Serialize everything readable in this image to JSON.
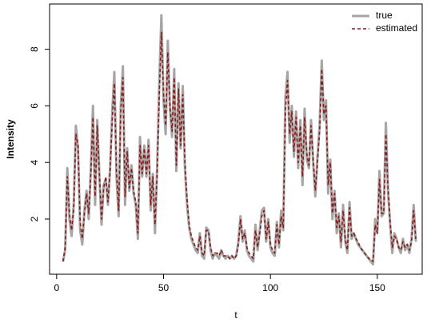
{
  "chart_data": {
    "type": "line",
    "x_label": "t",
    "y_label": "Intensity",
    "x": [
      3,
      4,
      5,
      6,
      7,
      8,
      9,
      10,
      11,
      12,
      13,
      14,
      15,
      16,
      17,
      18,
      19,
      20,
      21,
      22,
      23,
      24,
      25,
      26,
      27,
      28,
      29,
      30,
      31,
      32,
      33,
      34,
      35,
      36,
      37,
      38,
      39,
      40,
      41,
      42,
      43,
      44,
      45,
      46,
      47,
      48,
      49,
      50,
      51,
      52,
      53,
      54,
      55,
      56,
      57,
      58,
      59,
      60,
      61,
      62,
      63,
      64,
      65,
      66,
      67,
      68,
      69,
      70,
      71,
      72,
      73,
      74,
      75,
      76,
      77,
      78,
      79,
      80,
      81,
      82,
      83,
      84,
      85,
      86,
      87,
      88,
      89,
      90,
      91,
      92,
      93,
      94,
      95,
      96,
      97,
      98,
      99,
      100,
      101,
      102,
      103,
      104,
      105,
      106,
      107,
      108,
      109,
      110,
      111,
      112,
      113,
      114,
      115,
      116,
      117,
      118,
      119,
      120,
      121,
      122,
      123,
      124,
      125,
      126,
      127,
      128,
      129,
      130,
      131,
      132,
      133,
      134,
      135,
      136,
      137,
      138,
      139,
      140,
      141,
      142,
      143,
      144,
      145,
      146,
      147,
      148,
      149,
      150,
      151,
      152,
      153,
      154,
      155,
      156,
      157,
      158,
      159,
      160,
      161,
      162,
      163,
      164,
      165,
      166,
      167,
      168
    ],
    "series": [
      {
        "name": "true",
        "color": "#a6a6a6",
        "dash": false,
        "values": [
          0.5,
          0.9,
          3.8,
          2.0,
          1.4,
          2.5,
          5.3,
          4.5,
          1.6,
          1.1,
          2.3,
          3.0,
          2.0,
          3.8,
          6.0,
          2.5,
          5.5,
          3.5,
          1.8,
          3.2,
          3.4,
          2.5,
          3.8,
          5.8,
          7.2,
          3.5,
          2.1,
          6.0,
          7.4,
          2.5,
          4.5,
          3.0,
          3.9,
          2.9,
          2.5,
          1.3,
          4.9,
          3.5,
          4.6,
          3.5,
          4.8,
          2.3,
          3.6,
          1.5,
          3.8,
          6.8,
          9.2,
          6.2,
          5.0,
          8.3,
          5.9,
          4.9,
          7.3,
          3.7,
          6.8,
          4.5,
          6.7,
          3.8,
          2.5,
          1.7,
          1.3,
          1.1,
          0.9,
          0.8,
          1.5,
          0.7,
          0.6,
          1.7,
          1.6,
          0.9,
          0.6,
          0.8,
          0.7,
          0.6,
          0.9,
          0.7,
          0.6,
          0.7,
          0.6,
          0.7,
          0.6,
          0.7,
          1.2,
          2.1,
          1.2,
          1.6,
          0.9,
          0.7,
          0.6,
          0.5,
          1.8,
          0.9,
          1.6,
          2.3,
          2.4,
          1.2,
          2.0,
          1.0,
          0.8,
          0.7,
          1.9,
          1.0,
          2.3,
          1.6,
          6.3,
          7.2,
          4.7,
          6.0,
          4.2,
          5.8,
          3.8,
          5.5,
          3.2,
          5.9,
          4.1,
          3.8,
          5.5,
          4.0,
          2.8,
          4.2,
          5.3,
          7.6,
          5.5,
          6.2,
          2.9,
          4.1,
          2.0,
          3.0,
          1.5,
          2.2,
          1.0,
          2.5,
          1.2,
          0.8,
          2.6,
          1.3,
          1.5,
          1.3,
          1.1,
          1.0,
          0.9,
          0.8,
          0.7,
          0.6,
          0.5,
          0.4,
          2.0,
          1.5,
          3.7,
          2.1,
          2.2,
          5.4,
          3.0,
          1.8,
          0.8,
          1.5,
          1.3,
          1.0,
          0.8,
          1.3,
          0.9,
          1.1,
          0.8,
          1.3,
          2.5,
          1.2
        ]
      },
      {
        "name": "estimated",
        "color": "#8b1a1a",
        "dash": true,
        "values": [
          0.5,
          1.0,
          3.5,
          2.2,
          1.6,
          2.4,
          5.0,
          4.6,
          1.9,
          1.3,
          2.2,
          2.9,
          2.2,
          3.6,
          5.6,
          2.8,
          5.3,
          3.6,
          2.0,
          3.1,
          3.5,
          2.6,
          3.7,
          5.5,
          6.8,
          3.7,
          2.3,
          5.8,
          7.0,
          2.8,
          4.4,
          3.1,
          3.8,
          3.0,
          2.6,
          1.5,
          4.6,
          3.6,
          4.5,
          3.6,
          4.6,
          2.5,
          3.5,
          1.8,
          3.6,
          6.4,
          8.6,
          6.4,
          5.3,
          7.9,
          6.0,
          5.1,
          7.0,
          3.9,
          6.6,
          4.6,
          6.4,
          4.0,
          2.7,
          1.8,
          1.4,
          1.2,
          1.0,
          0.9,
          1.4,
          0.8,
          0.7,
          1.6,
          1.6,
          1.0,
          0.7,
          0.8,
          0.8,
          0.7,
          0.9,
          0.7,
          0.7,
          0.7,
          0.6,
          0.7,
          0.6,
          0.7,
          1.1,
          2.0,
          1.3,
          1.5,
          1.0,
          0.8,
          0.7,
          0.6,
          1.6,
          1.0,
          1.5,
          2.1,
          2.3,
          1.3,
          1.9,
          1.1,
          0.9,
          0.8,
          1.8,
          1.1,
          2.1,
          1.7,
          5.8,
          6.9,
          5.0,
          5.8,
          4.4,
          5.6,
          4.0,
          5.3,
          3.5,
          5.6,
          4.3,
          3.9,
          5.3,
          4.1,
          3.0,
          4.0,
          5.1,
          7.3,
          5.7,
          6.0,
          3.2,
          4.0,
          2.2,
          2.9,
          1.7,
          2.1,
          1.2,
          2.3,
          1.3,
          0.9,
          2.4,
          1.4,
          1.5,
          1.3,
          1.2,
          1.0,
          0.9,
          0.8,
          0.7,
          0.6,
          0.6,
          0.5,
          1.8,
          1.5,
          3.4,
          2.2,
          2.2,
          5.0,
          3.1,
          1.9,
          1.0,
          1.4,
          1.3,
          1.0,
          0.9,
          1.2,
          1.0,
          1.1,
          0.9,
          1.2,
          2.3,
          1.3
        ]
      }
    ],
    "xlim": [
      -3.3,
      171
    ],
    "ylim": [
      0.05,
      9.6
    ],
    "xticks": [
      0,
      50,
      100,
      150
    ],
    "yticks": [
      2,
      4,
      6,
      8
    ],
    "grid": false,
    "legend": "topright"
  }
}
